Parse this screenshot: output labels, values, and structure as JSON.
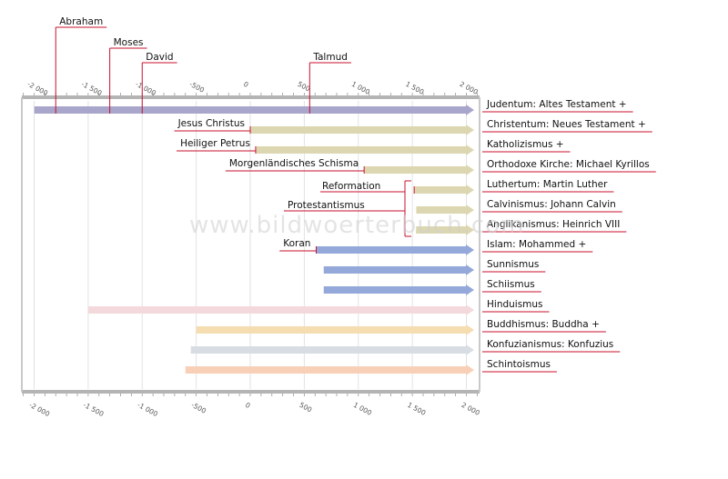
{
  "watermark": "www.bildwoerterbuch.com",
  "axis": {
    "ticks": [
      "-2 000",
      "-1 500",
      "-1 000",
      "-500",
      "0",
      "500",
      "1 000",
      "1 500",
      "2 000"
    ]
  },
  "events": [
    {
      "label": "Abraham",
      "year": -1800
    },
    {
      "label": "Moses",
      "year": -1300
    },
    {
      "label": "David",
      "year": -1000
    },
    {
      "label": "Talmud",
      "year": 550
    }
  ],
  "religions": [
    {
      "key": "judaism",
      "label": "Judentum: Altes Testament",
      "cross": true,
      "start": -2000,
      "color": "#a9a6cb"
    },
    {
      "key": "christianity",
      "label": "Christentum: Neues Testament",
      "cross": true,
      "start": 0,
      "color": "#dcd7b1",
      "note": "Jesus Christus"
    },
    {
      "key": "catholicism",
      "label": "Katholizismus",
      "cross": true,
      "start": 50,
      "color": "#dcd7b1",
      "note": "Heiliger Petrus"
    },
    {
      "key": "orthodox",
      "label": "Orthodoxe Kirche: Michael Kyrillos",
      "cross": false,
      "start": 1054,
      "color": "#dcd7b1",
      "note": "Morgenländisches Schisma"
    },
    {
      "key": "lutheranism",
      "label": "Luthertum: Martin Luther",
      "cross": false,
      "start": 1517,
      "color": "#dcd7b1"
    },
    {
      "key": "calvinism",
      "label": "Calvinismus: Johann Calvin",
      "cross": false,
      "start": 1536,
      "color": "#dcd7b1"
    },
    {
      "key": "anglicanism",
      "label": "Anglikanismus: Heinrich VIII",
      "cross": false,
      "start": 1534,
      "color": "#dcd7b1"
    },
    {
      "key": "islam",
      "label": "Islam: Mohammed",
      "cross": true,
      "start": 610,
      "color": "#94a9d9",
      "note": "Koran"
    },
    {
      "key": "sunnism",
      "label": "Sunnismus",
      "cross": false,
      "start": 680,
      "color": "#94a9d9"
    },
    {
      "key": "shiism",
      "label": "Schiismus",
      "cross": false,
      "start": 680,
      "color": "#94a9d9"
    },
    {
      "key": "hinduism",
      "label": "Hinduismus",
      "cross": false,
      "start": -1500,
      "color": "#f3d9dc"
    },
    {
      "key": "buddhism",
      "label": "Buddhismus: Buddha",
      "cross": true,
      "start": -500,
      "color": "#f6dcb1"
    },
    {
      "key": "confucianism",
      "label": "Konfuzianismus: Konfuzius",
      "cross": false,
      "start": -550,
      "color": "#d7dde3"
    },
    {
      "key": "shintoism",
      "label": "Schintoismus",
      "cross": false,
      "start": -600,
      "color": "#f8d0b8"
    }
  ],
  "groups": {
    "reformation": "Reformation",
    "protestantism": "Protestantismus"
  },
  "cross_glyph": "+"
}
